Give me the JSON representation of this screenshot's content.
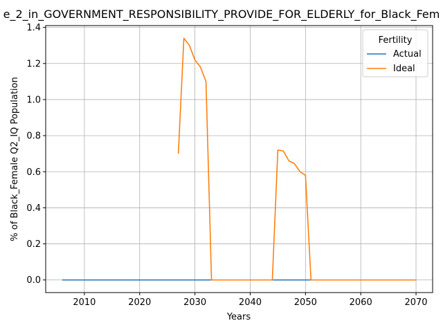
{
  "chart_data": {
    "type": "line",
    "title": "e_2_in_GOVERNMENT_RESPONSIBILITY_PROVIDE_FOR_ELDERLY_for_Black_Fem",
    "xlabel": "Years",
    "ylabel": "% of Black_Female Q2_IQ Population",
    "xlim": [
      2003,
      2073
    ],
    "ylim": [
      -0.07,
      1.41
    ],
    "xticks": [
      2010,
      2020,
      2030,
      2040,
      2050,
      2060,
      2070
    ],
    "yticks": [
      0.0,
      0.2,
      0.4,
      0.6,
      0.8,
      1.0,
      1.2,
      1.4
    ],
    "ytick_labels": [
      "0.0",
      "0.2",
      "0.4",
      "0.6",
      "0.8",
      "1.0",
      "1.2",
      "1.4"
    ],
    "grid": true,
    "legend": {
      "title": "Fertility",
      "placement": "top-right"
    },
    "series": [
      {
        "name": "Actual",
        "color": "#1f77b4",
        "x": [
          2006,
          2070
        ],
        "y": [
          0.0,
          0.0
        ]
      },
      {
        "name": "Ideal",
        "color": "#ff7f0e",
        "x": [
          2027,
          2028,
          2029,
          2030,
          2031,
          2032,
          2033,
          2034,
          2035,
          2036,
          2037,
          2038,
          2039,
          2040,
          2041,
          2042,
          2043,
          2044,
          2045,
          2046,
          2047,
          2048,
          2049,
          2050,
          2051,
          2052,
          2053,
          2054,
          2055,
          2056,
          2057,
          2058,
          2059,
          2060,
          2061,
          2062,
          2063,
          2064,
          2065,
          2066,
          2067,
          2068,
          2069,
          2070
        ],
        "y": [
          0.7,
          1.34,
          1.3,
          1.22,
          1.18,
          1.1,
          0.0,
          0.0,
          0.0,
          0.0,
          0.0,
          0.0,
          0.0,
          0.0,
          0.0,
          0.0,
          0.0,
          0.0,
          0.72,
          0.715,
          0.66,
          0.645,
          0.6,
          0.58,
          0.0,
          0.0,
          0.0,
          0.0,
          0.0,
          0.0,
          0.0,
          0.0,
          0.0,
          0.0,
          0.0,
          0.0,
          0.0,
          0.0,
          0.0,
          0.0,
          0.0,
          0.0,
          0.0,
          0.0
        ]
      }
    ]
  }
}
